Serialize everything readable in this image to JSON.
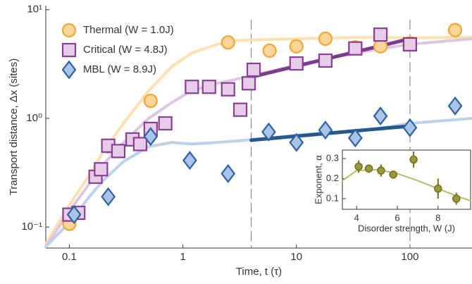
{
  "chart_data": [
    {
      "type": "scatter",
      "xlabel": "Time, t (τ)",
      "ylabel": "Transport distance, Δx (sites)",
      "xlog": true,
      "ylog": true,
      "xlim": [
        0.062,
        352
      ],
      "ylim": [
        0.064,
        10.9
      ],
      "xticks": [
        0.1,
        1,
        10,
        100
      ],
      "yticks": [
        {
          "value": 0.1,
          "label": "10⁻¹"
        },
        {
          "value": 1,
          "label": "10⁰"
        },
        {
          "value": 10,
          "label": "10¹"
        }
      ],
      "vlines": [
        4,
        100
      ],
      "legend": "upper left",
      "series": [
        {
          "name": "Thermal (W = 1.0J)",
          "marker": "circle",
          "color": "#fbd59a",
          "edgecolor": "#f0a830",
          "x": [
            0.1,
            0.22,
            0.52,
            2.5,
            5.8,
            10,
            18,
            33,
            55,
            100,
            250
          ],
          "values": [
            0.107,
            0.55,
            1.45,
            5.0,
            4.2,
            4.6,
            5.4,
            4.5,
            4.6,
            4.9,
            6.5
          ]
        },
        {
          "name": "Critical (W = 4.8J)",
          "marker": "square",
          "color": "#e6cce8",
          "edgecolor": "#8a3f96",
          "x": [
            0.1,
            0.12,
            0.17,
            0.19,
            0.22,
            0.27,
            0.36,
            0.42,
            0.52,
            0.7,
            1.2,
            1.7,
            2.5,
            3.2,
            3.8,
            4.2,
            10,
            18,
            33,
            55,
            100
          ],
          "values": [
            0.13,
            0.135,
            0.29,
            0.34,
            0.56,
            0.5,
            0.64,
            0.58,
            0.8,
            0.9,
            1.95,
            1.95,
            1.85,
            1.2,
            2.1,
            2.8,
            3.2,
            3.4,
            4.4,
            5.9,
            4.8
          ]
        },
        {
          "name": "MBL (W = 8.9J)",
          "marker": "diamond",
          "color": "#a9c4e6",
          "edgecolor": "#2f62a3",
          "x": [
            0.11,
            0.22,
            0.52,
            1.15,
            2.5,
            5.7,
            10,
            18,
            33,
            55,
            100,
            250
          ],
          "values": [
            0.13,
            0.19,
            0.68,
            0.41,
            0.31,
            0.75,
            0.6,
            0.78,
            0.66,
            1.05,
            0.82,
            1.3
          ]
        }
      ],
      "curves": [
        {
          "color": "#fde0b0",
          "x": [
            0.062,
            0.1,
            0.15,
            0.2,
            0.3,
            0.5,
            0.8,
            1.2,
            2,
            3,
            5,
            10,
            20,
            50,
            100,
            350
          ],
          "values": [
            0.07,
            0.16,
            0.3,
            0.5,
            0.9,
            1.8,
            3.0,
            4.0,
            4.8,
            5.2,
            5.3,
            5.4,
            5.5,
            5.6,
            5.5,
            5.6
          ]
        },
        {
          "color": "#dcc6e2",
          "x": [
            0.062,
            0.1,
            0.15,
            0.2,
            0.3,
            0.5,
            0.8,
            1.2,
            2,
            3,
            5,
            10,
            20,
            50,
            100,
            350
          ],
          "values": [
            0.066,
            0.14,
            0.25,
            0.38,
            0.6,
            1.0,
            1.4,
            1.8,
            2.1,
            2.3,
            2.6,
            3.1,
            3.6,
            4.3,
            4.8,
            5.4
          ]
        },
        {
          "color": "#bcd2ea",
          "x": [
            0.062,
            0.1,
            0.15,
            0.2,
            0.3,
            0.5,
            0.8,
            1.2,
            2,
            3,
            5,
            10,
            20,
            50,
            100,
            350
          ],
          "values": [
            0.066,
            0.11,
            0.19,
            0.27,
            0.4,
            0.55,
            0.6,
            0.58,
            0.6,
            0.62,
            0.65,
            0.7,
            0.74,
            0.8,
            0.9,
            1.0
          ]
        }
      ],
      "fits": [
        {
          "color": "#7b3a8c",
          "x": [
            4,
            100
          ],
          "values": [
            2.4,
            5.4
          ]
        },
        {
          "color": "#25588f",
          "x": [
            4,
            100
          ],
          "values": [
            0.63,
            0.85
          ]
        }
      ]
    },
    {
      "type": "errorbar",
      "xlabel": "Disorder strength, W (J)",
      "ylabel": "Exponent, α",
      "xlog": false,
      "ylog": false,
      "xlim": [
        3.3,
        9.6
      ],
      "ylim": [
        0.047,
        0.342
      ],
      "xticks": [
        4,
        6,
        8
      ],
      "yticks": [
        0.1,
        0.2,
        0.3
      ],
      "series": [
        {
          "marker": "circle",
          "color": "#9a9a3a",
          "edgecolor": "#6f6f1e",
          "x": [
            4.1,
            4.6,
            5.2,
            5.8,
            6.8,
            8,
            8.9
          ],
          "values": [
            0.26,
            0.25,
            0.24,
            0.22,
            0.295,
            0.15,
            0.1
          ],
          "errors": [
            0.03,
            0.02,
            0.03,
            0.02,
            0.04,
            0.05,
            0.03
          ]
        }
      ],
      "curves": [
        {
          "color": "#b8bb62",
          "x": [
            3.3,
            4,
            5,
            6,
            7,
            8,
            9,
            9.6
          ],
          "values": [
            0.19,
            0.24,
            0.245,
            0.225,
            0.19,
            0.15,
            0.11,
            0.09
          ]
        }
      ]
    }
  ]
}
